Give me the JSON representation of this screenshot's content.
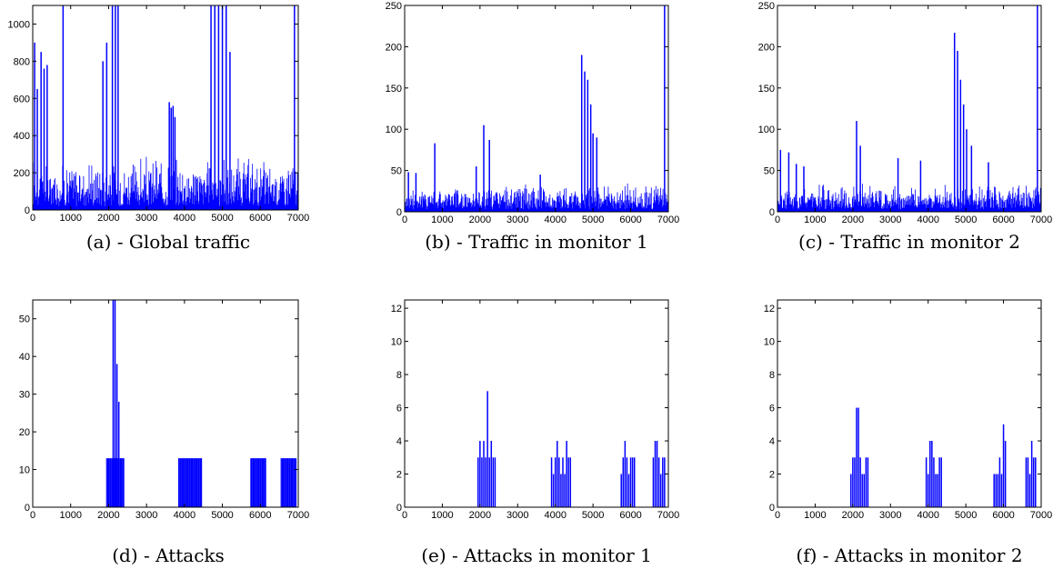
{
  "captions": [
    "(a) - Global traffic",
    "(b) - Traffic in monitor 1",
    "(c) - Traffic in monitor 2",
    "(d) - Attacks",
    "(e) - Attacks in monitor 1",
    "(f) - Attacks in monitor 2"
  ],
  "chart_data": [
    {
      "type": "bar",
      "title": "",
      "xlim": [
        0,
        7000
      ],
      "ylim": [
        0,
        1100
      ],
      "xticks": [
        0,
        1000,
        2000,
        3000,
        4000,
        5000,
        6000,
        7000
      ],
      "yticks": [
        0,
        200,
        400,
        600,
        800,
        1000
      ],
      "color": "#0000ff",
      "series": [
        {
          "x": [
            50,
            120,
            220,
            300,
            380,
            800,
            1850,
            1950,
            2100,
            2180,
            2250,
            3600,
            3650,
            3700,
            3750,
            4700,
            4800,
            4900,
            5000,
            5100,
            5200,
            6900
          ],
          "values": [
            900,
            650,
            850,
            760,
            780,
            1100,
            800,
            900,
            1100,
            1100,
            1100,
            580,
            550,
            560,
            500,
            1100,
            1100,
            1100,
            1100,
            1100,
            850,
            1100
          ]
        }
      ],
      "baseline": {
        "low": 20,
        "high": 300
      }
    },
    {
      "type": "bar",
      "title": "",
      "xlim": [
        0,
        7000
      ],
      "ylim": [
        0,
        250
      ],
      "xticks": [
        0,
        1000,
        2000,
        3000,
        4000,
        5000,
        6000,
        7000
      ],
      "yticks": [
        0,
        50,
        100,
        150,
        200,
        250
      ],
      "color": "#0000ff",
      "series": [
        {
          "x": [
            100,
            300,
            800,
            1900,
            2100,
            2250,
            3600,
            4700,
            4780,
            4860,
            4940,
            5000,
            5100,
            6900
          ],
          "values": [
            48,
            47,
            83,
            55,
            105,
            87,
            45,
            190,
            170,
            160,
            130,
            95,
            90,
            250
          ]
        }
      ],
      "baseline": {
        "low": 3,
        "high": 35
      }
    },
    {
      "type": "bar",
      "title": "",
      "xlim": [
        0,
        7000
      ],
      "ylim": [
        0,
        250
      ],
      "xticks": [
        0,
        1000,
        2000,
        3000,
        4000,
        5000,
        6000,
        7000
      ],
      "yticks": [
        0,
        50,
        100,
        150,
        200,
        250
      ],
      "color": "#0000ff",
      "series": [
        {
          "x": [
            80,
            300,
            500,
            700,
            2100,
            2200,
            3200,
            3800,
            4700,
            4780,
            4860,
            4940,
            5020,
            5150,
            5600,
            6900
          ],
          "values": [
            75,
            72,
            58,
            55,
            110,
            80,
            65,
            62,
            217,
            195,
            160,
            130,
            100,
            80,
            60,
            250
          ]
        }
      ],
      "baseline": {
        "low": 3,
        "high": 35
      }
    },
    {
      "type": "bar",
      "title": "",
      "xlim": [
        0,
        7000
      ],
      "ylim": [
        0,
        55
      ],
      "xticks": [
        0,
        1000,
        2000,
        3000,
        4000,
        5000,
        6000,
        7000
      ],
      "yticks": [
        0,
        10,
        20,
        30,
        40,
        50
      ],
      "color": "#0000ff",
      "groups": [
        {
          "from": 1950,
          "to": 2400,
          "level": 13
        },
        {
          "from": 3850,
          "to": 4450,
          "level": 13
        },
        {
          "from": 5750,
          "to": 6150,
          "level": 13
        },
        {
          "from": 6550,
          "to": 6950,
          "level": 13
        }
      ],
      "series": [
        {
          "x": [
            2120,
            2170,
            2220,
            2270
          ],
          "values": [
            55,
            55,
            38,
            28
          ]
        }
      ]
    },
    {
      "type": "bar",
      "title": "",
      "xlim": [
        0,
        7000
      ],
      "ylim": [
        0,
        12.5
      ],
      "xticks": [
        0,
        1000,
        2000,
        3000,
        4000,
        5000,
        6000,
        7000
      ],
      "yticks": [
        0,
        2,
        4,
        6,
        8,
        10,
        12
      ],
      "color": "#0000ff",
      "series": [
        {
          "x": [
            1950,
            2000,
            2050,
            2100,
            2150,
            2200,
            2250,
            2300,
            2350,
            2400,
            3900,
            3950,
            4000,
            4050,
            4100,
            4150,
            4200,
            4250,
            4300,
            4350,
            4400,
            5750,
            5800,
            5850,
            5900,
            5950,
            6000,
            6050,
            6100,
            6600,
            6650,
            6700,
            6750,
            6800,
            6850,
            6900
          ],
          "values": [
            3,
            4,
            3,
            4,
            3,
            7,
            3,
            4,
            3,
            3,
            3,
            2,
            3,
            4,
            3,
            2,
            3,
            2,
            4,
            3,
            3,
            2,
            3,
            4,
            3,
            2,
            3,
            3,
            3,
            3,
            4,
            4,
            3,
            2,
            3,
            3
          ]
        }
      ]
    },
    {
      "type": "bar",
      "title": "",
      "xlim": [
        0,
        7000
      ],
      "ylim": [
        0,
        12.5
      ],
      "xticks": [
        0,
        1000,
        2000,
        3000,
        4000,
        5000,
        6000,
        7000
      ],
      "yticks": [
        0,
        2,
        4,
        6,
        8,
        10,
        12
      ],
      "color": "#0000ff",
      "series": [
        {
          "x": [
            1950,
            2000,
            2050,
            2100,
            2150,
            2200,
            2250,
            2300,
            2350,
            2400,
            3950,
            4000,
            4050,
            4100,
            4150,
            4200,
            4250,
            4300,
            4350,
            5750,
            5800,
            5850,
            5900,
            5950,
            6000,
            6050,
            6600,
            6650,
            6700,
            6750,
            6800,
            6850
          ],
          "values": [
            2,
            3,
            3,
            6,
            6,
            3,
            2,
            2,
            3,
            3,
            3,
            2,
            4,
            4,
            3,
            2,
            2,
            3,
            3,
            2,
            2,
            2,
            3,
            2,
            5,
            4,
            3,
            3,
            2,
            4,
            3,
            3
          ]
        }
      ]
    }
  ]
}
